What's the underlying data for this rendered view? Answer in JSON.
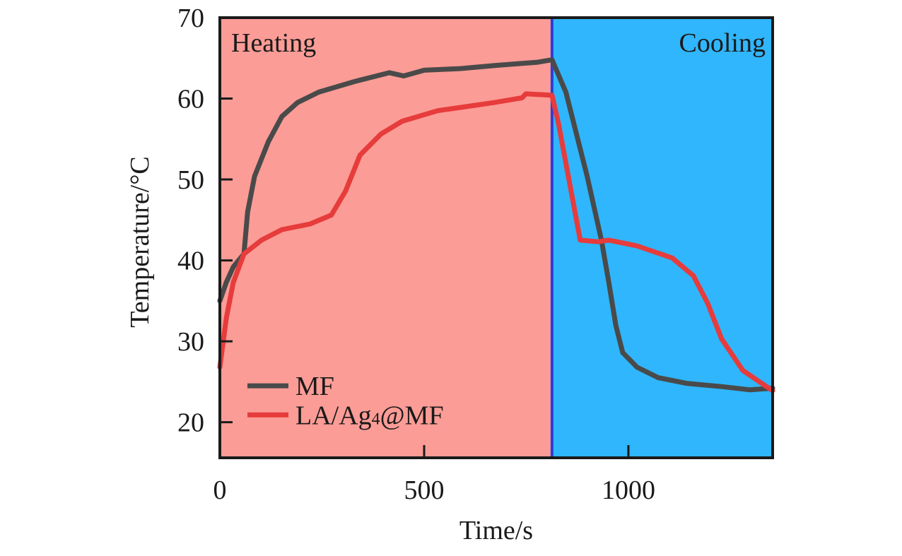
{
  "chart_data": {
    "type": "line",
    "title": "",
    "xlabel": "Time/s",
    "ylabel": "Temperature/°C",
    "xlim": [
      0,
      1353
    ],
    "ylim": [
      15.6,
      70
    ],
    "xticks": [
      0,
      500,
      1000
    ],
    "xtick_labels": [
      "0",
      "500",
      "1000"
    ],
    "yticks": [
      20,
      30,
      40,
      50,
      60,
      70
    ],
    "ytick_labels": [
      "20",
      "30",
      "40",
      "50",
      "60",
      "70"
    ],
    "grid": false,
    "legend_position": "bottom-left",
    "regions": [
      {
        "name": "Heating",
        "label": "Heating",
        "x_start": 0,
        "x_end": 813,
        "color": "#fc9c96",
        "label_position": "top-left"
      },
      {
        "name": "Cooling",
        "label": "Cooling",
        "x_start": 813,
        "x_end": 1353,
        "color": "#30b6fc",
        "label_position": "top-right"
      }
    ],
    "divider": {
      "x": 813,
      "color": "#2a3fd8"
    },
    "series": [
      {
        "name": "MF",
        "color": "#4a4a4a",
        "x": [
          0,
          16,
          33,
          59,
          68,
          85,
          119,
          152,
          190,
          242,
          329,
          415,
          450,
          500,
          588,
          675,
          779,
          813,
          847,
          899,
          934,
          952,
          969,
          986,
          1021,
          1073,
          1142,
          1228,
          1298,
          1353
        ],
        "y": [
          35.0,
          37.3,
          39.2,
          40.8,
          46.0,
          50.4,
          54.7,
          57.8,
          59.5,
          60.8,
          62.1,
          63.2,
          62.8,
          63.5,
          63.7,
          64.1,
          64.5,
          64.8,
          60.8,
          50.4,
          42.5,
          37.3,
          32.0,
          28.6,
          26.8,
          25.5,
          24.8,
          24.4,
          24.0,
          24.2
        ]
      },
      {
        "name": "LA/Ag4@MF",
        "label_main": "LA/Ag",
        "label_sub": "4",
        "label_tail": "@MF",
        "color": "#e63c3c",
        "x": [
          0,
          16,
          33,
          59,
          102,
          152,
          221,
          273,
          308,
          343,
          394,
          446,
          533,
          671,
          740,
          749,
          813,
          829,
          882,
          925,
          952,
          1021,
          1107,
          1159,
          1194,
          1228,
          1280,
          1332,
          1353
        ],
        "y": [
          26.8,
          32.9,
          37.3,
          40.8,
          42.5,
          43.8,
          44.5,
          45.6,
          48.6,
          53.0,
          55.6,
          57.2,
          58.5,
          59.5,
          60.1,
          60.6,
          60.4,
          56.9,
          42.5,
          42.3,
          42.5,
          41.8,
          40.3,
          38.1,
          34.7,
          30.3,
          26.4,
          24.6,
          23.9
        ]
      }
    ]
  }
}
